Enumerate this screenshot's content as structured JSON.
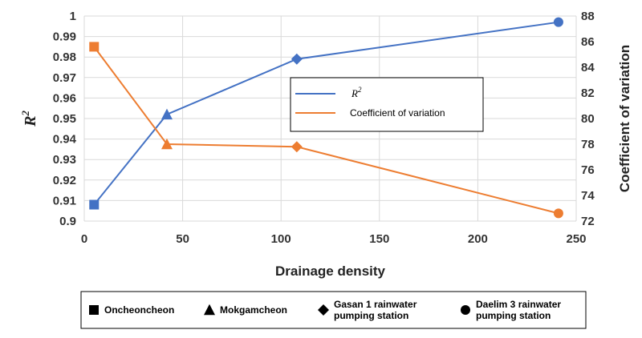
{
  "chart_data": {
    "type": "line",
    "xlabel": "Drainage density",
    "ylabel_left": "R",
    "ylabel_left_superscript": "2",
    "ylabel_right": "Coefficient of variation",
    "xlim": [
      0,
      250
    ],
    "ylim_left": [
      0.9,
      1.0
    ],
    "ylim_right": [
      72,
      88
    ],
    "x_ticks": [
      0,
      50,
      100,
      150,
      200,
      250
    ],
    "y_left_ticks": [
      0.9,
      0.91,
      0.92,
      0.93,
      0.94,
      0.95,
      0.96,
      0.97,
      0.98,
      0.99,
      1
    ],
    "y_right_ticks": [
      72,
      74,
      76,
      78,
      80,
      82,
      84,
      86,
      88
    ],
    "grid": true,
    "legend_position": "center-right",
    "series": [
      {
        "name": "R",
        "name_superscript": "2",
        "axis": "left",
        "color": "#4472C4",
        "points": [
          {
            "x": 5,
            "y": 0.908
          },
          {
            "x": 42,
            "y": 0.952
          },
          {
            "x": 108,
            "y": 0.979
          },
          {
            "x": 241,
            "y": 0.997
          }
        ]
      },
      {
        "name": "Coefficient of variation",
        "axis": "right",
        "color": "#ED7D31",
        "points": [
          {
            "x": 5,
            "y": 85.6
          },
          {
            "x": 42,
            "y": 78.0
          },
          {
            "x": 108,
            "y": 77.8
          },
          {
            "x": 241,
            "y": 72.6
          }
        ]
      }
    ],
    "marker_legend": [
      {
        "shape": "square",
        "lines": [
          "Oncheoncheon"
        ]
      },
      {
        "shape": "triangle",
        "lines": [
          "Mokgamcheon"
        ]
      },
      {
        "shape": "diamond",
        "lines": [
          "Gasan 1 rainwater",
          "pumping station"
        ]
      },
      {
        "shape": "circle",
        "lines": [
          "Daelim 3 rainwater",
          "pumping station"
        ]
      }
    ]
  }
}
